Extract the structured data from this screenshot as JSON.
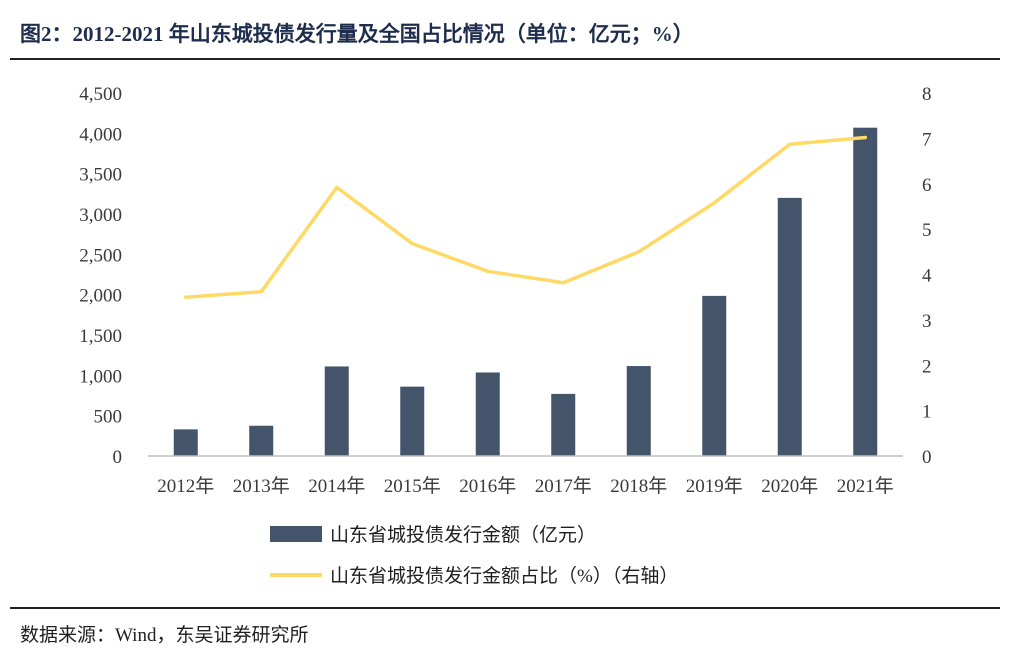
{
  "page": {
    "title": "图2：2012-2021 年山东城投债发行量及全国占比情况（单位：亿元；%）",
    "source": "数据来源：Wind，东吴证券研究所"
  },
  "chart_data": {
    "type": "bar",
    "title": "",
    "categories": [
      "2012年",
      "2013年",
      "2014年",
      "2015年",
      "2016年",
      "2017年",
      "2018年",
      "2019年",
      "2020年",
      "2021年"
    ],
    "series": [
      {
        "name": "山东省城投债发行金额（亿元）",
        "type": "bar",
        "axis": "left",
        "color": "#44546a",
        "values": [
          330,
          375,
          1110,
          860,
          1035,
          770,
          1115,
          1985,
          3200,
          4070
        ]
      },
      {
        "name": "山东省城投债发行金额占比（%）（右轴）",
        "type": "line",
        "axis": "right",
        "color": "#ffd966",
        "values": [
          3.5,
          3.62,
          5.92,
          4.68,
          4.07,
          3.82,
          4.5,
          5.58,
          6.87,
          7.02
        ]
      }
    ],
    "left_axis": {
      "min": 0,
      "max": 4500,
      "ticks": [
        "0",
        "500",
        "1,000",
        "1,500",
        "2,000",
        "2,500",
        "3,000",
        "3,500",
        "4,000",
        "4,500"
      ]
    },
    "right_axis": {
      "min": 0,
      "max": 8,
      "ticks": [
        "0",
        "1",
        "2",
        "3",
        "4",
        "5",
        "6",
        "7",
        "8"
      ]
    },
    "grid": false,
    "legend_position": "bottom"
  }
}
